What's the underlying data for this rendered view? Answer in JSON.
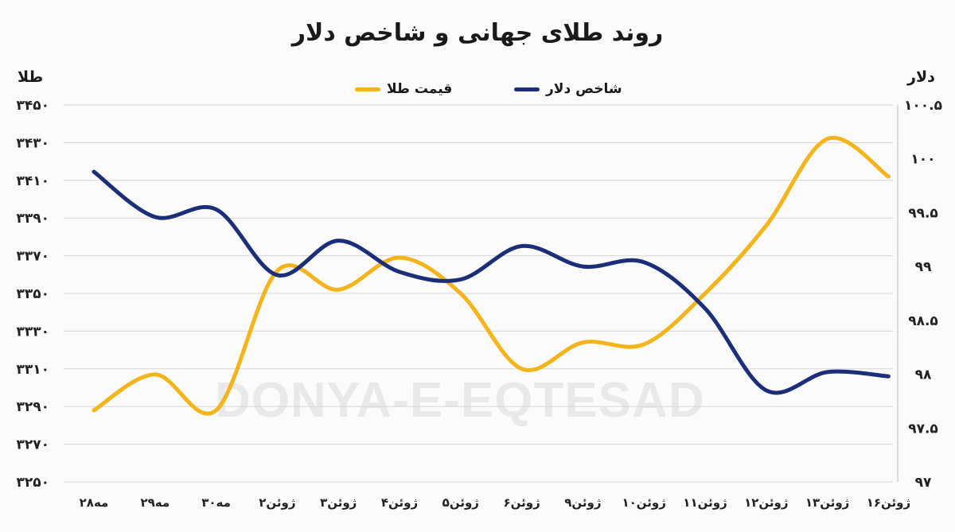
{
  "chart_data": {
    "type": "line",
    "title": "روند طلای جهانی و شاخص دلار",
    "y_left_label": "طلا",
    "y_right_label": "دلار",
    "categories": [
      "۲۸مه",
      "۲۹مه",
      "۳۰مه",
      "۲ژوئن",
      "۳ژوئن",
      "۴ژوئن",
      "۵ژوئن",
      "۶ژوئن",
      "۹ژوئن",
      "۱۰ژوئن",
      "۱۱ژوئن",
      "۱۲ژوئن",
      "۱۳ژوئن",
      "۱۶ژوئن"
    ],
    "y_left": {
      "min": 3250,
      "max": 3450,
      "step": 20,
      "tick_labels": [
        "۳۲۵۰",
        "۳۲۷۰",
        "۳۲۹۰",
        "۳۳۱۰",
        "۳۳۳۰",
        "۳۳۵۰",
        "۳۳۷۰",
        "۳۳۹۰",
        "۳۴۱۰",
        "۳۴۳۰",
        "۳۴۵۰"
      ]
    },
    "y_right": {
      "min": 97,
      "max": 100.5,
      "step": 0.5,
      "tick_labels": [
        "۹۷",
        "۹۷.۵",
        "۹۸",
        "۹۸.۵",
        "۹۹",
        "۹۹.۵",
        "۱۰۰",
        "۱۰۰.۵"
      ]
    },
    "series": [
      {
        "name": "قیمت طلا",
        "axis": "left",
        "color": "#F4B41A",
        "values": [
          3288,
          3307,
          3288,
          3362,
          3352,
          3369,
          3350,
          3310,
          3324,
          3323,
          3350,
          3386,
          3432,
          3412
        ]
      },
      {
        "name": "شاخص دلار",
        "axis": "right",
        "color": "#1B2F78",
        "values": [
          99.88,
          99.46,
          99.53,
          98.92,
          99.24,
          98.95,
          98.88,
          99.19,
          99.0,
          99.04,
          98.61,
          97.85,
          98.02,
          97.98
        ]
      }
    ],
    "grid": true,
    "legend_position": "top-center"
  },
  "watermark": "DONYA-E-EQTESAD"
}
